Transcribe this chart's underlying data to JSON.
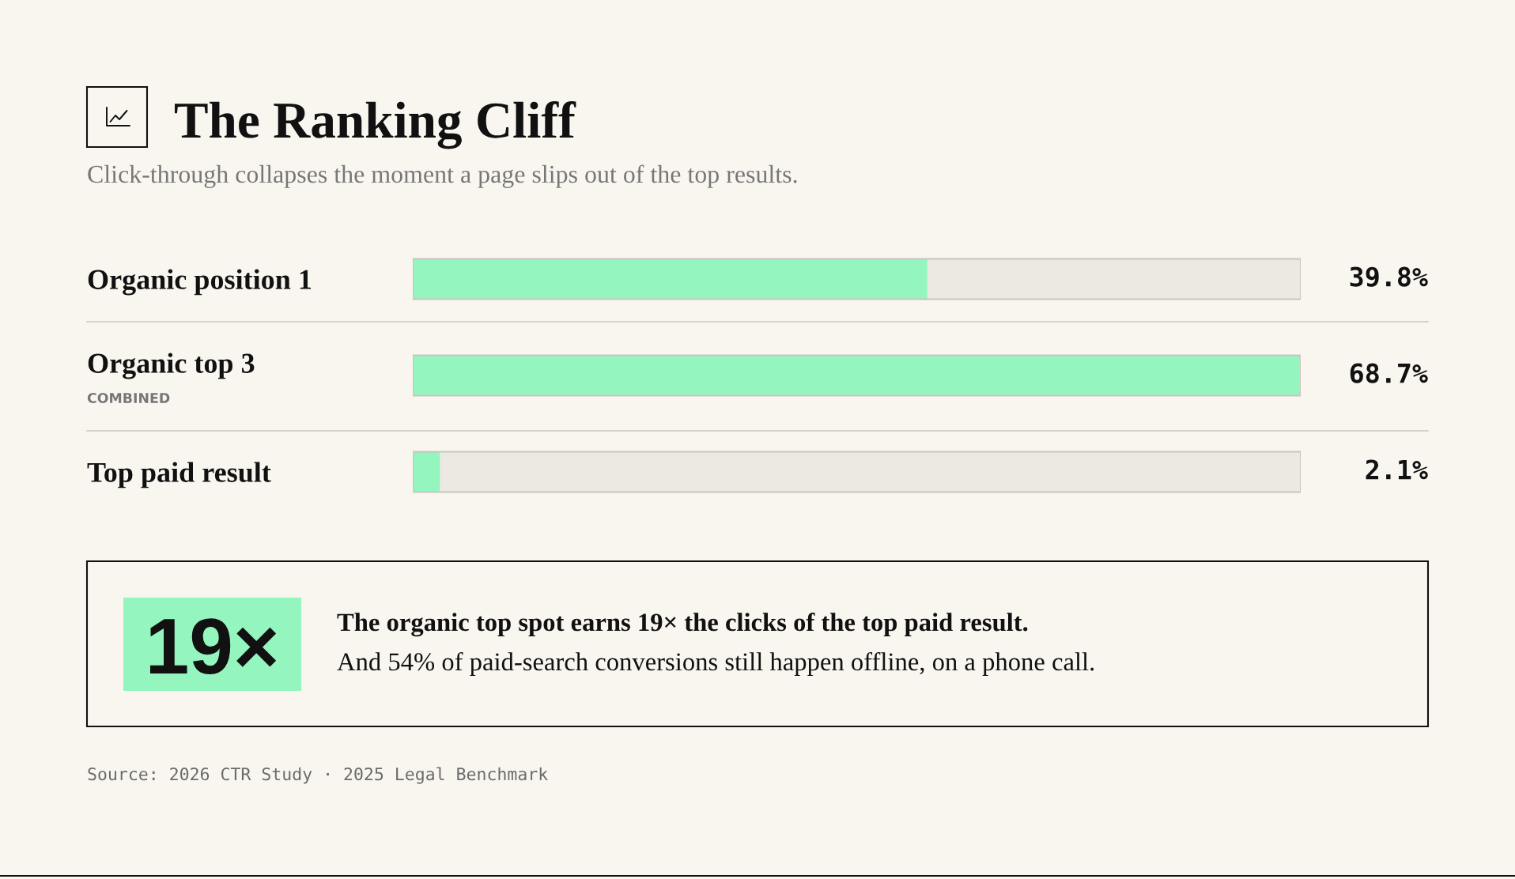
{
  "chart_data": {
    "type": "bar",
    "orientation": "horizontal",
    "title": "The Ranking Cliff",
    "subtitle": "Click-through collapses the moment a page slips out of the top results.",
    "categories": [
      "Organic position 1",
      "Organic top 3",
      "Top paid result"
    ],
    "values": [
      39.8,
      68.7,
      2.1
    ],
    "color": "#94f5be",
    "value_labels": [
      "39.8%",
      "68.7%",
      "2.1%"
    ],
    "xlim": [
      0,
      68.7
    ],
    "tick_labels": "y",
    "annotations": [
      "COMBINED",
      "19×",
      "The organic top spot earns 19× the clicks of the top paid result.",
      "And 54% of paid-search conversions still happen offline, on a phone call.",
      "Source: 2026 CTR Study · 2025 Legal Benchmark"
    ]
  }
}
